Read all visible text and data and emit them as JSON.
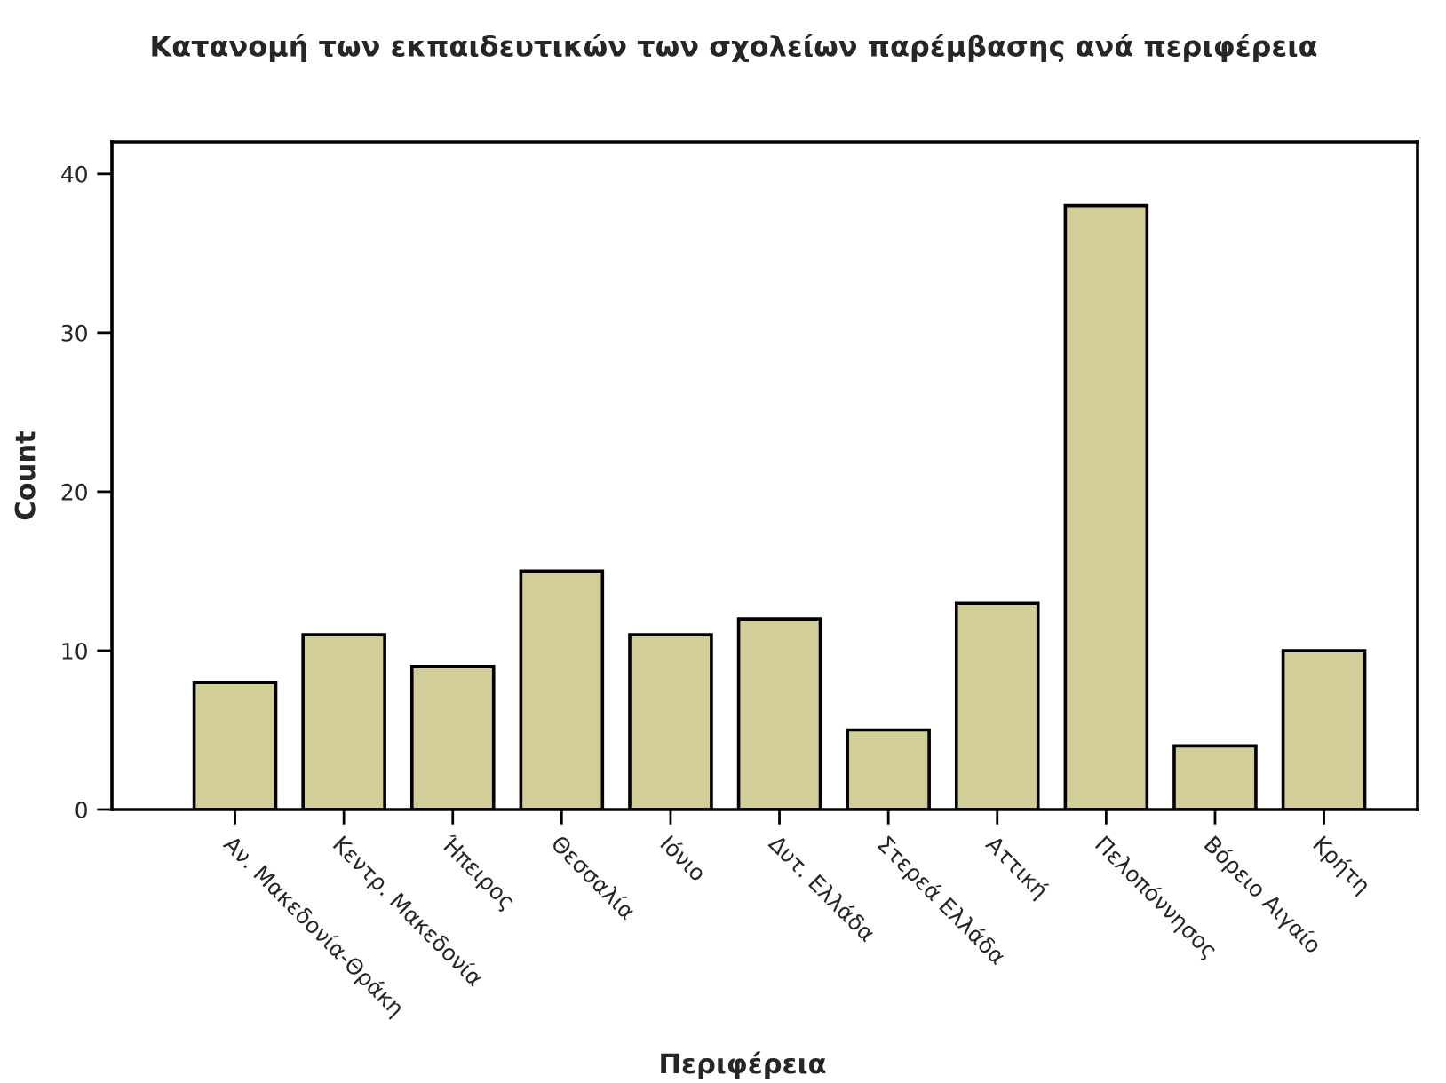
{
  "chart_data": {
    "type": "bar",
    "title": "Κατανομή των εκπαιδευτικών των σχολείων παρέμβασης ανά περιφέρεια",
    "xlabel": "Περιφέρεια",
    "ylabel": "Count",
    "categories": [
      "Αν. Μακεδονία-Θράκη",
      "Κεντρ. Μακεδονία",
      "Ήπειρος",
      "Θεσσαλία",
      "Ιόνιο",
      "Δυτ. Ελλάδα",
      "Στερεά Ελλάδα",
      "Αττική",
      "Πελοπόννησος",
      "Βόρειο Αιγαίο",
      "Κρήτη"
    ],
    "values": [
      8,
      11,
      9,
      15,
      11,
      12,
      5,
      13,
      38,
      4,
      10
    ],
    "color": "#d3ce97",
    "ylim": [
      0,
      42
    ],
    "yticks": [
      0,
      10,
      20,
      30,
      40
    ],
    "grid": false,
    "legend": false
  }
}
